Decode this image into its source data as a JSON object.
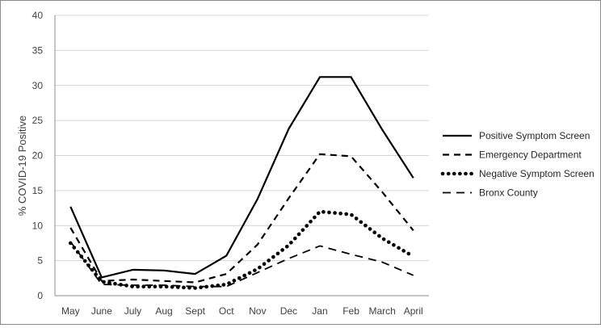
{
  "chart_data": {
    "type": "line",
    "title": "",
    "xlabel": "",
    "ylabel": "% COVID-19 Positive",
    "ylim": [
      0,
      40
    ],
    "yticks": [
      0,
      5,
      10,
      15,
      20,
      25,
      30,
      35,
      40
    ],
    "grid": "horizontal",
    "legend_position": "right",
    "categories": [
      "May",
      "June",
      "July",
      "Aug",
      "Sept",
      "Oct",
      "Nov",
      "Dec",
      "Jan",
      "Feb",
      "March",
      "April"
    ],
    "series": [
      {
        "name": "Positive Symptom Screen",
        "style": "solid",
        "color": "#000000",
        "values": [
          12.7,
          2.6,
          3.7,
          3.6,
          3.1,
          5.7,
          13.8,
          23.8,
          31.2,
          31.2,
          23.7,
          16.8
        ]
      },
      {
        "name": "Emergency Department",
        "style": "dashed",
        "color": "#000000",
        "values": [
          9.7,
          2.1,
          2.3,
          2.1,
          1.9,
          3.1,
          7.3,
          13.9,
          20.2,
          19.9,
          14.8,
          9.3
        ]
      },
      {
        "name": "Negative Symptom Screen",
        "style": "dotted",
        "color": "#000000",
        "values": [
          7.5,
          2.0,
          1.3,
          1.3,
          1.1,
          1.6,
          3.8,
          7.2,
          12.0,
          11.6,
          8.2,
          5.6
        ]
      },
      {
        "name": "Bronx County",
        "style": "dashed-long",
        "color": "#000000",
        "values": [
          7.7,
          1.6,
          1.5,
          1.5,
          1.3,
          1.3,
          3.3,
          5.3,
          7.1,
          5.9,
          4.8,
          2.9
        ]
      }
    ]
  }
}
